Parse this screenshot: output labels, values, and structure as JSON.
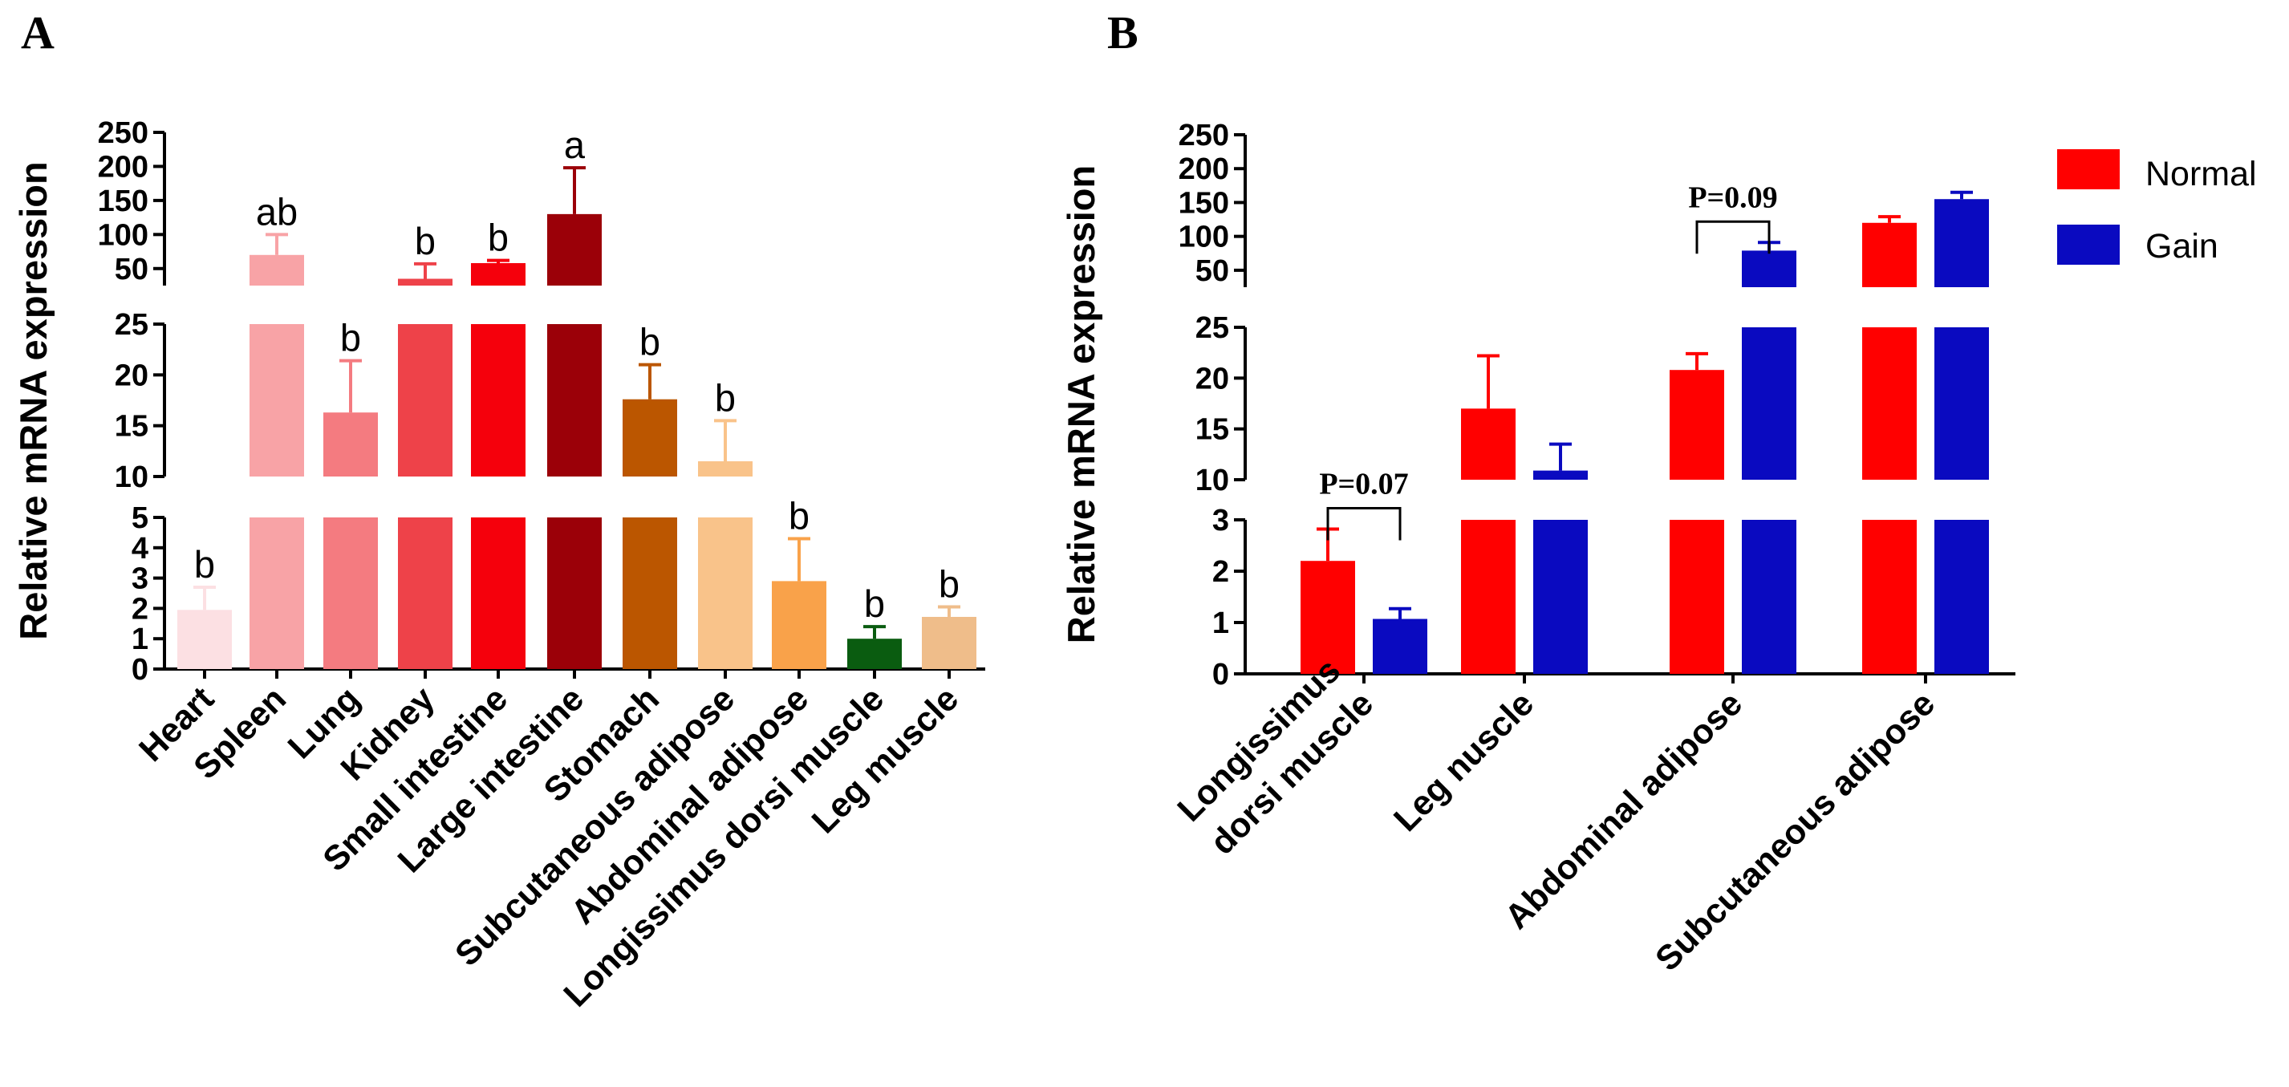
{
  "chart_data": [
    {
      "panel": "A",
      "type": "bar",
      "ylabel": "Relative mRNA expression",
      "axis_breaks": true,
      "y_segments": [
        {
          "range": [
            0,
            5
          ],
          "ticks": [
            0,
            1,
            2,
            3,
            4,
            5
          ]
        },
        {
          "range": [
            10,
            25
          ],
          "ticks": [
            10,
            15,
            20,
            25
          ]
        },
        {
          "range": [
            25,
            250
          ],
          "ticks": [
            50,
            100,
            150,
            200,
            250
          ]
        }
      ],
      "categories": [
        "Heart",
        "Spleen",
        "Lung",
        "Kidney",
        "Small intestine",
        "Large intestine",
        "Stomach",
        "Subcutaneous adipose",
        "Abdominal adipose",
        "Longissimus dorsi muscle",
        "Leg muscle"
      ],
      "values": [
        1.95,
        70,
        16.3,
        35,
        58,
        130,
        17.6,
        11.5,
        2.9,
        1.0,
        1.72
      ],
      "errors": [
        0.75,
        30,
        5.1,
        22,
        4,
        68,
        3.4,
        4.0,
        1.4,
        0.4,
        0.33
      ],
      "significance": [
        "b",
        "ab",
        "b",
        "b",
        "b",
        "a",
        "b",
        "b",
        "b",
        "b",
        "b"
      ],
      "colors": [
        "#fce0e3",
        "#f8a3a6",
        "#f47b80",
        "#ee4249",
        "#f5000c",
        "#9b0008",
        "#bb5600",
        "#f9c38a",
        "#f9a24a",
        "#0a5c10",
        "#efbd8a"
      ],
      "grid": false
    },
    {
      "panel": "B",
      "type": "bar",
      "ylabel": "Relative mRNA expression",
      "axis_breaks": true,
      "y_segments": [
        {
          "range": [
            0,
            3
          ],
          "ticks": [
            0,
            1,
            2,
            3
          ]
        },
        {
          "range": [
            10,
            25
          ],
          "ticks": [
            10,
            15,
            20,
            25
          ]
        },
        {
          "range": [
            25,
            250
          ],
          "ticks": [
            50,
            100,
            150,
            200,
            250
          ]
        }
      ],
      "categories": [
        "Longissimus\ndorsi muscle",
        "Leg nuscle",
        "Abdominal adipose",
        "Subcutaneous adipose"
      ],
      "series": [
        {
          "name": "Normal",
          "color": "#ff0000",
          "values": [
            2.2,
            17.0,
            20.8,
            120
          ],
          "errors": [
            0.62,
            5.2,
            1.6,
            9
          ]
        },
        {
          "name": "Gain",
          "color": "#0a0ac0",
          "values": [
            1.07,
            10.9,
            79,
            155
          ],
          "errors": [
            0.2,
            2.6,
            12,
            10
          ]
        }
      ],
      "annotations": [
        {
          "group": 0,
          "text": "P=0.07"
        },
        {
          "group": 2,
          "text": "P=0.09"
        }
      ],
      "legend_position": "top-right",
      "grid": false
    }
  ]
}
